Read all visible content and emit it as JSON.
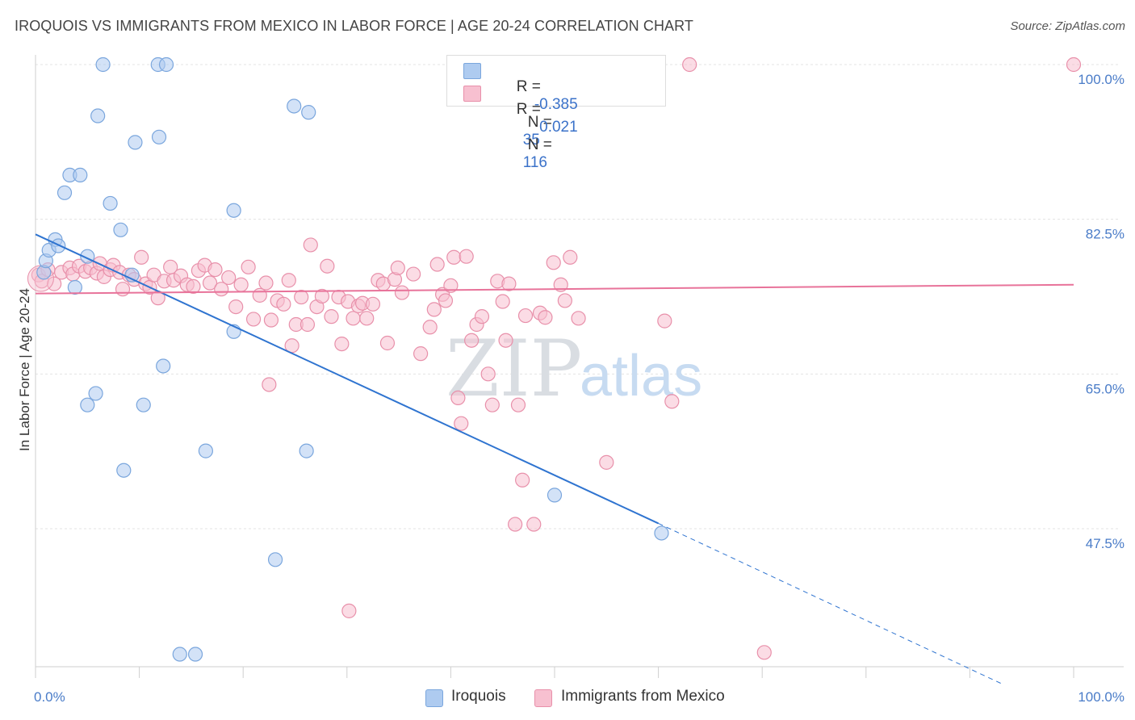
{
  "title": "IROQUOIS VS IMMIGRANTS FROM MEXICO IN LABOR FORCE | AGE 20-24 CORRELATION CHART",
  "source": "Source: ZipAtlas.com",
  "watermark": {
    "zip": "ZIP",
    "atlas": "atlas"
  },
  "legend_top": [
    {
      "r_label": "R =",
      "r_value": "-0.385",
      "n_label": "N =",
      "n_value": "35",
      "color": "#aecbf0",
      "border": "#7aa6dd"
    },
    {
      "r_label": "R =",
      "r_value": "0.021",
      "n_label": "N =",
      "n_value": "116",
      "color": "#f7c0d0",
      "border": "#e890aa"
    }
  ],
  "legend_bottom": [
    {
      "label": "Iroquois",
      "color": "#aecbf0",
      "border": "#7aa6dd"
    },
    {
      "label": "Immigrants from Mexico",
      "color": "#f7c0d0",
      "border": "#e890aa"
    }
  ],
  "chart_data": {
    "type": "scatter",
    "title": "IROQUOIS VS IMMIGRANTS FROM MEXICO IN LABOR FORCE | AGE 20-24 CORRELATION CHART",
    "xlabel": "",
    "ylabel": "In Labor Force | Age 20-24",
    "xlim": [
      0,
      100
    ],
    "ylim": [
      30,
      103
    ],
    "x_tick_labels": [
      "0.0%",
      "100.0%"
    ],
    "y_ticks": [
      47.5,
      65.0,
      82.5,
      100.0
    ],
    "y_tick_labels": [
      "47.5%",
      "65.0%",
      "82.5%",
      "100.0%"
    ],
    "grid": true,
    "series": [
      {
        "name": "Iroquois",
        "color": "#aecbf0",
        "stroke": "#7aa6dd",
        "line_color": "#2f74d0",
        "trend": {
          "x0": 0,
          "y0": 80.8,
          "x1": 60,
          "y1": 48.1,
          "dash_to_x": 93,
          "dash_to_y": 30
        },
        "points": [
          [
            0.8,
            76.5
          ],
          [
            1.0,
            77.8
          ],
          [
            1.3,
            79.0
          ],
          [
            1.9,
            80.2
          ],
          [
            2.2,
            79.5
          ],
          [
            2.8,
            85.5
          ],
          [
            3.3,
            87.5
          ],
          [
            4.3,
            87.5
          ],
          [
            3.8,
            74.8
          ],
          [
            5.0,
            78.3
          ],
          [
            5.0,
            61.5
          ],
          [
            5.8,
            62.8
          ],
          [
            6.0,
            94.2
          ],
          [
            6.5,
            100.0
          ],
          [
            7.2,
            84.3
          ],
          [
            8.2,
            81.3
          ],
          [
            8.5,
            54.1
          ],
          [
            9.3,
            76.2
          ],
          [
            9.6,
            91.2
          ],
          [
            11.8,
            100.0
          ],
          [
            11.9,
            91.8
          ],
          [
            10.4,
            61.5
          ],
          [
            12.3,
            65.9
          ],
          [
            12.6,
            100.0
          ],
          [
            13.9,
            33.3
          ],
          [
            15.4,
            33.3
          ],
          [
            16.4,
            56.3
          ],
          [
            19.1,
            83.5
          ],
          [
            19.1,
            69.8
          ],
          [
            23.1,
            44.0
          ],
          [
            24.9,
            95.3
          ],
          [
            26.1,
            56.3
          ],
          [
            26.3,
            94.6
          ],
          [
            50.0,
            51.3
          ],
          [
            60.3,
            47.0
          ]
        ]
      },
      {
        "name": "Immigrants from Mexico",
        "color": "#f7c0d0",
        "stroke": "#e890aa",
        "line_color": "#e8739a",
        "trend": {
          "x0": 0,
          "y0": 74.1,
          "x1": 100,
          "y1": 75.1
        },
        "points": [
          [
            0.3,
            76.2
          ],
          [
            0.6,
            75.5
          ],
          [
            1.2,
            76.8
          ],
          [
            1.8,
            75.2
          ],
          [
            2.5,
            76.5
          ],
          [
            3.3,
            77.0
          ],
          [
            3.6,
            76.3
          ],
          [
            4.2,
            77.2
          ],
          [
            4.8,
            76.6
          ],
          [
            5.3,
            77.0
          ],
          [
            5.9,
            76.4
          ],
          [
            6.2,
            77.5
          ],
          [
            6.6,
            76.0
          ],
          [
            7.2,
            76.8
          ],
          [
            7.5,
            77.3
          ],
          [
            8.1,
            76.5
          ],
          [
            8.4,
            74.6
          ],
          [
            9.0,
            76.2
          ],
          [
            9.5,
            75.7
          ],
          [
            10.2,
            78.2
          ],
          [
            10.6,
            75.2
          ],
          [
            11.0,
            74.8
          ],
          [
            11.4,
            76.2
          ],
          [
            11.8,
            73.6
          ],
          [
            12.4,
            75.5
          ],
          [
            13.0,
            77.1
          ],
          [
            13.3,
            75.6
          ],
          [
            14.0,
            76.1
          ],
          [
            14.6,
            75.1
          ],
          [
            15.2,
            74.9
          ],
          [
            15.7,
            76.7
          ],
          [
            16.3,
            77.3
          ],
          [
            16.8,
            75.3
          ],
          [
            17.3,
            76.8
          ],
          [
            17.9,
            74.6
          ],
          [
            18.6,
            75.9
          ],
          [
            19.3,
            72.6
          ],
          [
            19.8,
            75.1
          ],
          [
            20.5,
            77.1
          ],
          [
            21.0,
            71.2
          ],
          [
            21.6,
            73.9
          ],
          [
            22.2,
            75.3
          ],
          [
            22.7,
            71.1
          ],
          [
            23.3,
            73.3
          ],
          [
            23.9,
            72.9
          ],
          [
            24.4,
            75.6
          ],
          [
            24.7,
            68.2
          ],
          [
            25.1,
            70.6
          ],
          [
            25.6,
            73.7
          ],
          [
            26.2,
            70.6
          ],
          [
            26.5,
            79.6
          ],
          [
            27.1,
            72.6
          ],
          [
            27.6,
            73.8
          ],
          [
            28.1,
            77.2
          ],
          [
            28.5,
            71.5
          ],
          [
            29.2,
            73.7
          ],
          [
            29.5,
            68.4
          ],
          [
            30.1,
            73.2
          ],
          [
            30.6,
            71.3
          ],
          [
            31.1,
            72.7
          ],
          [
            31.5,
            73.0
          ],
          [
            31.9,
            71.3
          ],
          [
            32.5,
            72.9
          ],
          [
            33.0,
            75.6
          ],
          [
            33.5,
            75.2
          ],
          [
            33.9,
            68.5
          ],
          [
            34.6,
            75.7
          ],
          [
            34.9,
            77.0
          ],
          [
            35.3,
            74.2
          ],
          [
            36.4,
            76.3
          ],
          [
            37.1,
            67.3
          ],
          [
            38.0,
            70.3
          ],
          [
            38.4,
            72.3
          ],
          [
            38.7,
            77.4
          ],
          [
            39.2,
            74.0
          ],
          [
            39.5,
            73.3
          ],
          [
            40.0,
            75.0
          ],
          [
            40.3,
            78.2
          ],
          [
            40.7,
            62.3
          ],
          [
            41.0,
            59.4
          ],
          [
            41.5,
            78.3
          ],
          [
            42.0,
            68.8
          ],
          [
            42.5,
            70.6
          ],
          [
            43.0,
            71.5
          ],
          [
            43.6,
            65.0
          ],
          [
            44.0,
            61.5
          ],
          [
            44.5,
            75.5
          ],
          [
            45.0,
            73.2
          ],
          [
            45.3,
            68.8
          ],
          [
            45.6,
            75.2
          ],
          [
            46.2,
            48.0
          ],
          [
            46.5,
            61.5
          ],
          [
            46.9,
            53.0
          ],
          [
            47.2,
            71.6
          ],
          [
            47.8,
            100.0
          ],
          [
            48.0,
            48.0
          ],
          [
            48.6,
            71.9
          ],
          [
            49.1,
            71.4
          ],
          [
            49.9,
            77.6
          ],
          [
            50.6,
            75.1
          ],
          [
            51.0,
            73.3
          ],
          [
            51.5,
            78.2
          ],
          [
            52.3,
            71.3
          ],
          [
            53.0,
            100.0
          ],
          [
            55.0,
            55.0
          ],
          [
            56.0,
            100.0
          ],
          [
            58.0,
            100.0
          ],
          [
            60.6,
            71.0
          ],
          [
            61.3,
            61.9
          ],
          [
            63.0,
            100.0
          ],
          [
            70.2,
            33.5
          ],
          [
            100.0,
            100.0
          ],
          [
            30.2,
            38.2
          ],
          [
            22.5,
            63.8
          ]
        ]
      }
    ]
  }
}
